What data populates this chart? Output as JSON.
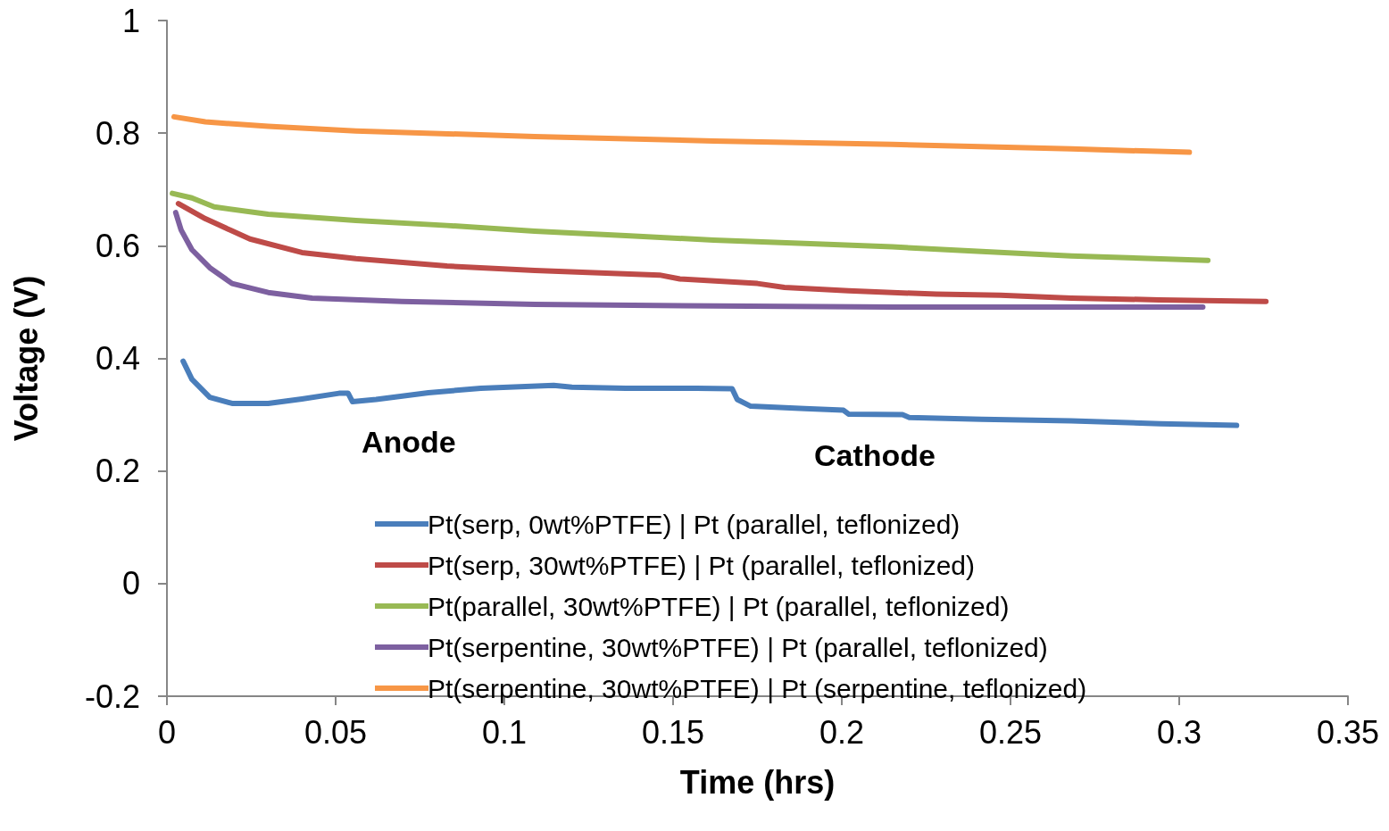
{
  "chart_data": {
    "type": "line",
    "xlabel": "Time (hrs)",
    "ylabel": "Voltage (V)",
    "xlim": [
      0,
      0.35
    ],
    "xticks": [
      0,
      0.05,
      0.1,
      0.15,
      0.2,
      0.25,
      0.3,
      0.35
    ],
    "ylim": [
      -0.2,
      1
    ],
    "yticks": [
      -0.2,
      0,
      0.2,
      0.4,
      0.6,
      0.8,
      1
    ],
    "grid": false,
    "legend": "bottom",
    "marker": "none",
    "line_style": "solid",
    "annotations": [
      "Anode",
      "Cathode"
    ],
    "series": [
      {
        "name": "Pt(serp, 0wt%PTFE) | Pt (parallel, teflonized)",
        "color": "#4a7ebb",
        "x": [
          0.0048,
          0.0074,
          0.0127,
          0.0193,
          0.03,
          0.04,
          0.051,
          0.0537,
          0.055,
          0.062,
          0.0775,
          0.093,
          0.1146,
          0.12,
          0.136,
          0.157,
          0.1675,
          0.169,
          0.173,
          0.189,
          0.2005,
          0.202,
          0.218,
          0.22,
          0.2415,
          0.268,
          0.2944,
          0.317
        ],
        "values": [
          0.395,
          0.363,
          0.331,
          0.32,
          0.32,
          0.328,
          0.338,
          0.338,
          0.323,
          0.327,
          0.339,
          0.347,
          0.352,
          0.349,
          0.347,
          0.347,
          0.346,
          0.327,
          0.315,
          0.311,
          0.308,
          0.301,
          0.3,
          0.295,
          0.292,
          0.289,
          0.284,
          0.281
        ]
      },
      {
        "name": "Pt(serp, 30wt%PTFE) | Pt (parallel, teflonized)",
        "color": "#be4b48",
        "x": [
          0.0034,
          0.0114,
          0.0246,
          0.04,
          0.056,
          0.083,
          0.109,
          0.146,
          0.152,
          0.175,
          0.183,
          0.202,
          0.228,
          0.247,
          0.268,
          0.294,
          0.3257
        ],
        "values": [
          0.675,
          0.648,
          0.612,
          0.588,
          0.577,
          0.564,
          0.556,
          0.548,
          0.541,
          0.533,
          0.526,
          0.52,
          0.514,
          0.512,
          0.507,
          0.504,
          0.501
        ]
      },
      {
        "name": "Pt(parallel, 30wt%PTFE) | Pt (parallel, teflonized)",
        "color": "#98b954",
        "x": [
          0.0016,
          0.0074,
          0.014,
          0.03,
          0.056,
          0.083,
          0.109,
          0.136,
          0.162,
          0.189,
          0.215,
          0.2415,
          0.268,
          0.3085
        ],
        "values": [
          0.693,
          0.685,
          0.669,
          0.656,
          0.645,
          0.636,
          0.626,
          0.618,
          0.61,
          0.604,
          0.598,
          0.59,
          0.582,
          0.574
        ]
      },
      {
        "name": "Pt(serpentine, 30wt%PTFE) | Pt (parallel, teflonized)",
        "color": "#7d60a0",
        "x": [
          0.0026,
          0.0042,
          0.0074,
          0.0127,
          0.0193,
          0.03,
          0.043,
          0.0696,
          0.109,
          0.162,
          0.215,
          0.268,
          0.307
        ],
        "values": [
          0.659,
          0.628,
          0.593,
          0.561,
          0.533,
          0.517,
          0.507,
          0.501,
          0.496,
          0.493,
          0.491,
          0.491,
          0.491
        ]
      },
      {
        "name": "Pt(serpentine, 30wt%PTFE) | Pt (serpentine, teflonized)",
        "color": "#f79646",
        "x": [
          0.0021,
          0.0114,
          0.03,
          0.056,
          0.109,
          0.162,
          0.215,
          0.268,
          0.303
        ],
        "values": [
          0.829,
          0.82,
          0.812,
          0.804,
          0.794,
          0.786,
          0.78,
          0.772,
          0.766
        ]
      }
    ]
  }
}
